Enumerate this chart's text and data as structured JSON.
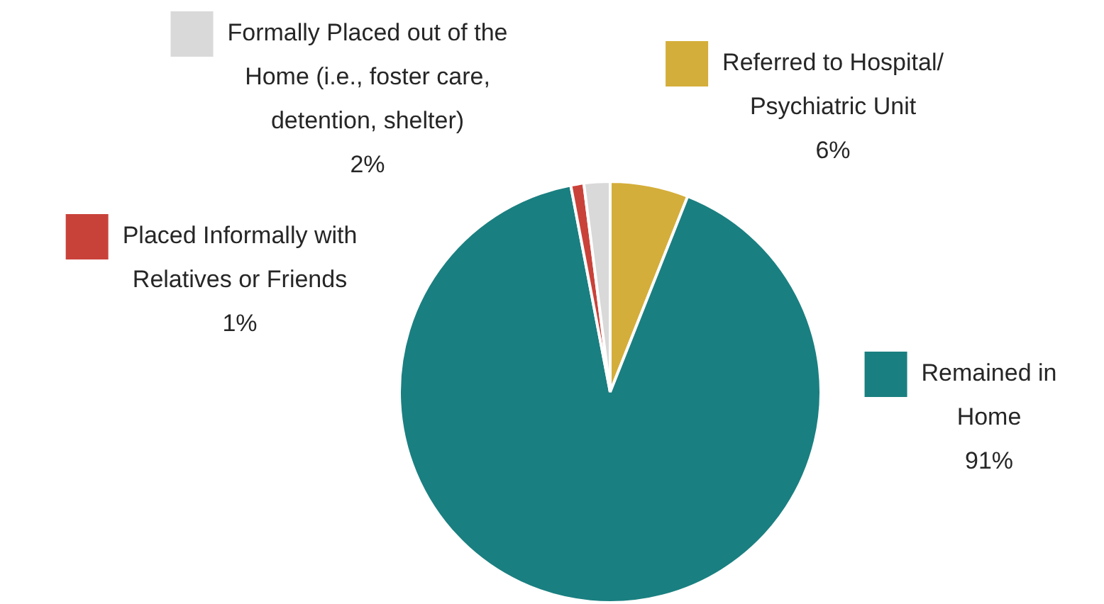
{
  "chart_data": {
    "type": "pie",
    "categories": [
      "Referred to Hospital/ Psychiatric Unit",
      "Remained in Home",
      "Placed Informally with Relatives or Friends",
      "Formally Placed out of the Home (i.e., foster care, detention, shelter)"
    ],
    "values": [
      6,
      91,
      1,
      2
    ],
    "value_labels": [
      "6%",
      "91%",
      "1%",
      "2%"
    ],
    "colors": [
      "#d4ae3a",
      "#1a7f80",
      "#c9423a",
      "#d9d9d9"
    ],
    "legend": "top"
  }
}
